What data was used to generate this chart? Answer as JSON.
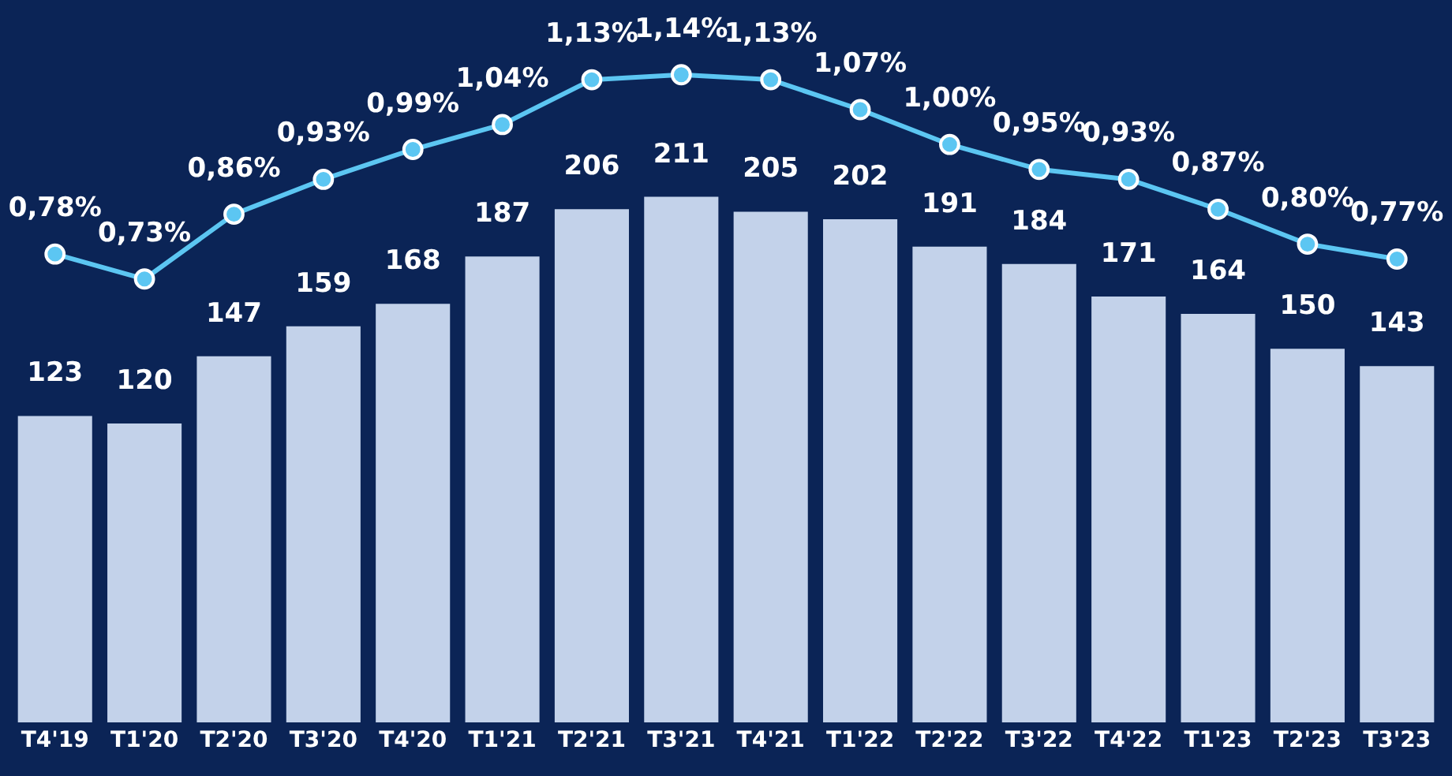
{
  "chart_data": {
    "type": "bar",
    "categories": [
      "T4'19",
      "T1'20",
      "T2'20",
      "T3'20",
      "T4'20",
      "T1'21",
      "T2'21",
      "T3'21",
      "T4'21",
      "T1'22",
      "T2'22",
      "T3'22",
      "T4'22",
      "T1'23",
      "T2'23",
      "T3'23"
    ],
    "series": [
      {
        "color": "#c3d2ea",
        "values": [
          123,
          120,
          147,
          159,
          168,
          187,
          206,
          211,
          205,
          202,
          191,
          184,
          171,
          164,
          150,
          143
        ],
        "value_labels": [
          "123",
          "120",
          "147",
          "159",
          "168",
          "187",
          "206",
          "211",
          "205",
          "202",
          "191",
          "184",
          "171",
          "164",
          "150",
          "143"
        ]
      },
      {
        "type": "line",
        "axis": "y2",
        "color": "#5cc6f2",
        "values": [
          0.78,
          0.73,
          0.86,
          0.93,
          0.99,
          1.04,
          1.13,
          1.14,
          1.13,
          1.07,
          1.0,
          0.95,
          0.93,
          0.87,
          0.8,
          0.77
        ],
        "value_labels": [
          "0,78%",
          "0,73%",
          "0,86%",
          "0,93%",
          "0,99%",
          "1,04%",
          "1,13%",
          "1,14%",
          "1,13%",
          "1,07%",
          "1,00%",
          "0,95%",
          "0,93%",
          "0,87%",
          "0,80%",
          "0,77%"
        ]
      }
    ],
    "ylim": [
      0,
      290
    ],
    "y2lim": [
      -0.16,
      1.29
    ],
    "tick_labels": "x",
    "marker": "circle"
  }
}
